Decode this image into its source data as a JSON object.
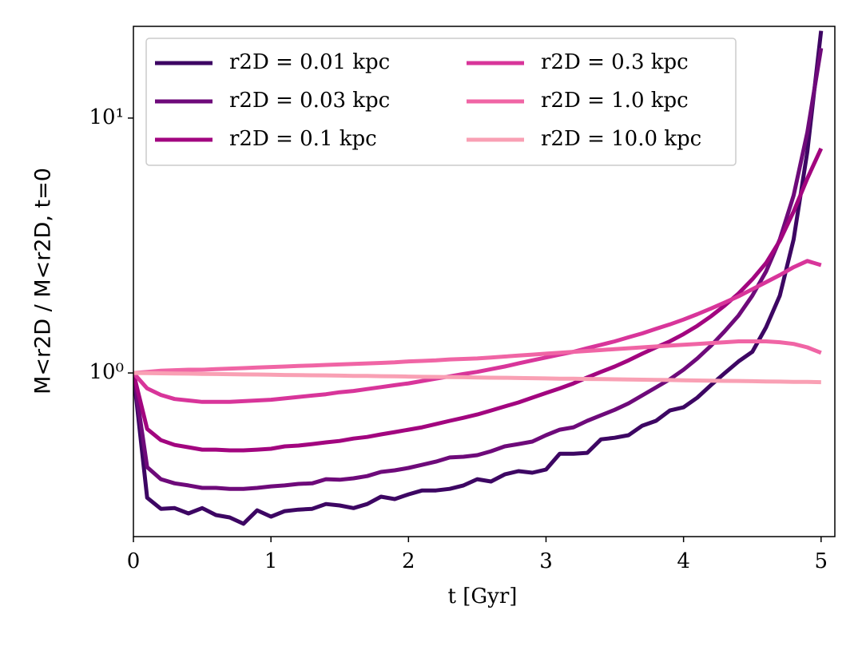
{
  "chart_data": {
    "type": "line",
    "xlabel": "t [Gyr]",
    "ylabel": "M<r2D / M<r2D, t=0",
    "x": [
      0,
      0.1,
      0.2,
      0.3,
      0.4,
      0.5,
      0.6,
      0.7,
      0.8,
      0.9,
      1.0,
      1.1,
      1.2,
      1.3,
      1.4,
      1.5,
      1.6,
      1.7,
      1.8,
      1.9,
      2.0,
      2.1,
      2.2,
      2.3,
      2.4,
      2.5,
      2.6,
      2.7,
      2.8,
      2.9,
      3.0,
      3.1,
      3.2,
      3.3,
      3.4,
      3.5,
      3.6,
      3.7,
      3.8,
      3.9,
      4.0,
      4.1,
      4.2,
      4.3,
      4.4,
      4.5,
      4.6,
      4.7,
      4.8,
      4.9,
      5.0
    ],
    "series": [
      {
        "name": "r2D = 0.01 kpc",
        "color": "#3d0663",
        "values": [
          1.0,
          0.324,
          0.293,
          0.295,
          0.281,
          0.295,
          0.277,
          0.271,
          0.256,
          0.289,
          0.273,
          0.287,
          0.291,
          0.293,
          0.306,
          0.302,
          0.295,
          0.306,
          0.327,
          0.32,
          0.334,
          0.346,
          0.346,
          0.351,
          0.362,
          0.383,
          0.375,
          0.4,
          0.412,
          0.406,
          0.418,
          0.482,
          0.482,
          0.486,
          0.549,
          0.557,
          0.57,
          0.621,
          0.649,
          0.712,
          0.733,
          0.8,
          0.897,
          1.0,
          1.11,
          1.21,
          1.51,
          2.01,
          3.34,
          7.4,
          22
        ]
      },
      {
        "name": "r2D = 0.03 kpc",
        "color": "#6e0a7a",
        "values": [
          1.0,
          0.427,
          0.383,
          0.369,
          0.362,
          0.354,
          0.354,
          0.351,
          0.351,
          0.354,
          0.359,
          0.362,
          0.367,
          0.369,
          0.383,
          0.381,
          0.386,
          0.394,
          0.409,
          0.415,
          0.424,
          0.436,
          0.449,
          0.466,
          0.469,
          0.476,
          0.493,
          0.515,
          0.526,
          0.538,
          0.57,
          0.599,
          0.612,
          0.649,
          0.682,
          0.717,
          0.76,
          0.817,
          0.878,
          0.944,
          1.03,
          1.14,
          1.28,
          1.46,
          1.68,
          2.01,
          2.5,
          3.34,
          4.97,
          8.8,
          18.8
        ]
      },
      {
        "name": "r2D = 0.1 kpc",
        "color": "#a2057f",
        "values": [
          1.0,
          0.603,
          0.545,
          0.522,
          0.511,
          0.5,
          0.5,
          0.497,
          0.497,
          0.5,
          0.504,
          0.515,
          0.519,
          0.526,
          0.534,
          0.541,
          0.553,
          0.561,
          0.574,
          0.586,
          0.599,
          0.612,
          0.63,
          0.649,
          0.667,
          0.687,
          0.712,
          0.739,
          0.766,
          0.8,
          0.835,
          0.87,
          0.91,
          0.96,
          1.01,
          1.06,
          1.12,
          1.19,
          1.26,
          1.33,
          1.42,
          1.53,
          1.67,
          1.84,
          2.05,
          2.33,
          2.7,
          3.3,
          4.3,
          5.8,
          7.6
        ]
      },
      {
        "name": "r2D = 0.3 kpc",
        "color": "#d8359a",
        "values": [
          1.0,
          0.87,
          0.82,
          0.79,
          0.78,
          0.77,
          0.77,
          0.77,
          0.775,
          0.78,
          0.785,
          0.795,
          0.805,
          0.815,
          0.825,
          0.84,
          0.85,
          0.865,
          0.88,
          0.895,
          0.91,
          0.93,
          0.95,
          0.97,
          0.99,
          1.01,
          1.035,
          1.06,
          1.09,
          1.12,
          1.15,
          1.18,
          1.21,
          1.25,
          1.29,
          1.33,
          1.38,
          1.43,
          1.49,
          1.55,
          1.62,
          1.7,
          1.79,
          1.89,
          2.0,
          2.13,
          2.27,
          2.42,
          2.6,
          2.75,
          2.65
        ]
      },
      {
        "name": "r2D = 1.0 kpc",
        "color": "#f065a5",
        "values": [
          1.0,
          1.01,
          1.02,
          1.025,
          1.03,
          1.03,
          1.035,
          1.04,
          1.045,
          1.05,
          1.055,
          1.06,
          1.065,
          1.07,
          1.075,
          1.08,
          1.085,
          1.09,
          1.095,
          1.1,
          1.11,
          1.115,
          1.12,
          1.13,
          1.135,
          1.14,
          1.15,
          1.16,
          1.17,
          1.18,
          1.19,
          1.2,
          1.21,
          1.22,
          1.23,
          1.24,
          1.25,
          1.26,
          1.27,
          1.28,
          1.29,
          1.3,
          1.31,
          1.32,
          1.33,
          1.33,
          1.33,
          1.32,
          1.3,
          1.26,
          1.2
        ]
      },
      {
        "name": "r2D = 10.0 kpc",
        "color": "#f9a0b4",
        "values": [
          1.0,
          0.998,
          0.997,
          0.995,
          0.994,
          0.992,
          0.99,
          0.989,
          0.987,
          0.986,
          0.984,
          0.982,
          0.981,
          0.979,
          0.978,
          0.976,
          0.974,
          0.973,
          0.971,
          0.97,
          0.968,
          0.966,
          0.965,
          0.963,
          0.962,
          0.96,
          0.958,
          0.957,
          0.955,
          0.954,
          0.952,
          0.95,
          0.949,
          0.947,
          0.946,
          0.944,
          0.942,
          0.941,
          0.939,
          0.938,
          0.936,
          0.934,
          0.933,
          0.931,
          0.93,
          0.928,
          0.926,
          0.925,
          0.923,
          0.922,
          0.92
        ]
      }
    ],
    "xlim": [
      0,
      5.1
    ],
    "xticks": [
      0,
      1,
      2,
      3,
      4,
      5
    ],
    "ylim": [
      0.228,
      22.9
    ],
    "yscale": "log",
    "yticks": [
      {
        "value": 1,
        "label": "10⁰"
      },
      {
        "value": 10,
        "label": "10¹"
      }
    ],
    "legend": "upper left",
    "legend_columns": 2,
    "grid": false
  }
}
